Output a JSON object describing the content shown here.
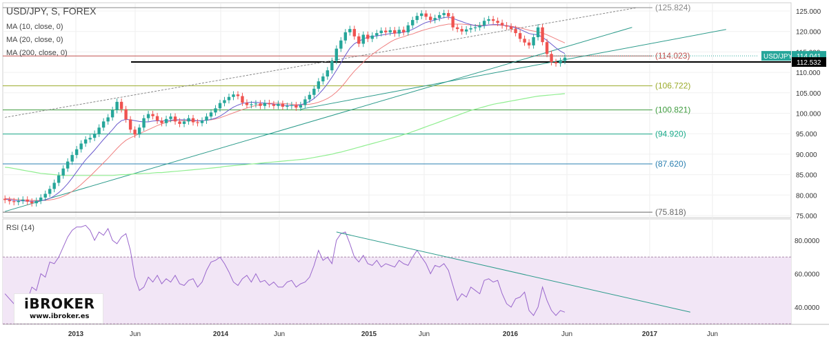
{
  "chart_data": [
    {
      "type": "candlestick",
      "title": "USD/JPY, S, FOREX",
      "overlays": [
        "MA (10, close, 0)",
        "MA (20, close, 0)",
        "MA (200, close, 0)"
      ],
      "ylim": [
        75,
        127
      ],
      "y_ticks": [
        "125.000",
        "120.000",
        "115.000",
        "110.000",
        "105.000",
        "100.000",
        "95.000",
        "90.000",
        "85.000",
        "80.000",
        "75.000"
      ],
      "x_ticks": [
        "2013",
        "Jun",
        "2014",
        "Jun",
        "2015",
        "Jun",
        "2016",
        "Jun",
        "2017",
        "Jun"
      ],
      "levels": [
        {
          "label": "(125.824)",
          "value": 125.824,
          "color": "#888888"
        },
        {
          "label": "(114.023)",
          "value": 114.023,
          "color": "#c0504d"
        },
        {
          "label": "(106.722)",
          "value": 106.722,
          "color": "#9aaa28"
        },
        {
          "label": "(100.821)",
          "value": 100.821,
          "color": "#3c9a3c"
        },
        {
          "label": "(94.920)",
          "value": 94.92,
          "color": "#1aaa8a"
        },
        {
          "label": "(87.620)",
          "value": 87.62,
          "color": "#2a7fb0"
        },
        {
          "label": "(75.818)",
          "value": 75.818,
          "color": "#666666"
        }
      ],
      "support_level": 112.532,
      "current_price": {
        "label": "USD/JPY",
        "value": "114.041"
      },
      "support_label": "112.532",
      "close_series": [
        78.8,
        78.5,
        78.3,
        78.6,
        78.9,
        78.4,
        78.0,
        78.6,
        79.4,
        80.3,
        81.5,
        83.0,
        84.8,
        86.5,
        88.2,
        89.8,
        91.2,
        92.6,
        93.6,
        94.0,
        95.0,
        96.5,
        98.0,
        99.0,
        100.8,
        102.8,
        101.0,
        98.5,
        96.0,
        94.8,
        96.5,
        98.8,
        99.8,
        99.3,
        98.2,
        97.6,
        98.6,
        99.2,
        98.0,
        97.4,
        98.0,
        98.8,
        97.8,
        97.6,
        98.2,
        99.2,
        100.2,
        101.2,
        102.5,
        103.2,
        104.0,
        104.6,
        104.2,
        102.6,
        102.0,
        102.2,
        102.4,
        101.8,
        102.5,
        102.2,
        101.8,
        102.3,
        101.6,
        101.8,
        102.0,
        101.4,
        102.0,
        103.4,
        104.5,
        106.0,
        107.8,
        109.0,
        110.5,
        112.8,
        115.8,
        117.8,
        119.8,
        120.6,
        118.8,
        117.0,
        119.2,
        118.2,
        119.0,
        119.6,
        120.2,
        119.8,
        120.3,
        119.5,
        120.4,
        119.8,
        121.5,
        122.8,
        123.8,
        124.4,
        123.6,
        122.8,
        123.3,
        124.0,
        124.5,
        123.7,
        121.0,
        120.6,
        120.0,
        120.5,
        120.8,
        121.0,
        121.5,
        122.6,
        123.0,
        122.6,
        122.1,
        121.5,
        121.2,
        120.6,
        119.6,
        118.2,
        117.3,
        116.6,
        118.6,
        121.0,
        117.4,
        114.5,
        112.5,
        112.2,
        112.8,
        113.6
      ],
      "ma10": [
        79.0,
        78.9,
        78.7,
        78.6,
        78.6,
        78.5,
        78.5,
        78.5,
        78.6,
        78.8,
        79.2,
        79.8,
        80.6,
        81.6,
        82.8,
        84.2,
        85.7,
        87.2,
        88.6,
        89.8,
        91.0,
        92.3,
        93.6,
        94.8,
        96.0,
        97.3,
        98.2,
        98.5,
        98.4,
        98.2,
        98.0,
        97.9,
        97.9,
        98.1,
        98.2,
        98.1,
        98.2,
        98.3,
        98.4,
        98.4,
        98.4,
        98.4,
        98.3,
        98.2,
        98.2,
        98.3,
        98.5,
        98.8,
        99.3,
        100.0,
        100.8,
        101.5,
        102.0,
        102.4,
        102.6,
        102.7,
        102.7,
        102.6,
        102.5,
        102.4,
        102.2,
        102.1,
        102.0,
        101.9,
        101.9,
        101.9,
        102.1,
        102.4,
        102.9,
        103.6,
        104.6,
        105.8,
        107.2,
        108.8,
        110.5,
        112.3,
        114.2,
        115.9,
        117.0,
        117.6,
        118.2,
        118.6,
        118.8,
        118.9,
        119.1,
        119.3,
        119.5,
        119.6,
        119.7,
        119.8,
        120.1,
        120.5,
        121.1,
        121.7,
        122.2,
        122.5,
        122.8,
        123.1,
        123.4,
        123.5,
        123.2,
        122.8,
        122.4,
        122.0,
        121.7,
        121.4,
        121.3,
        121.4,
        121.6,
        121.7,
        121.7,
        121.6,
        121.4,
        121.2,
        120.9,
        120.5,
        120.0,
        119.5,
        119.3,
        119.2,
        118.6,
        117.8,
        116.9,
        116.0,
        115.2,
        114.6
      ],
      "ma20": [
        79.2,
        79.1,
        79.0,
        78.9,
        78.8,
        78.8,
        78.7,
        78.7,
        78.7,
        78.7,
        78.8,
        79.0,
        79.3,
        79.7,
        80.2,
        80.9,
        81.7,
        82.6,
        83.6,
        84.6,
        85.7,
        86.8,
        87.9,
        89.0,
        90.2,
        91.4,
        92.5,
        93.4,
        94.0,
        94.5,
        95.0,
        95.5,
        96.0,
        96.5,
        97.0,
        97.4,
        97.8,
        98.1,
        98.3,
        98.3,
        98.2,
        98.2,
        98.1,
        98.1,
        98.2,
        98.3,
        98.4,
        98.6,
        98.9,
        99.3,
        99.7,
        100.1,
        100.5,
        100.9,
        101.3,
        101.6,
        101.9,
        102.1,
        102.3,
        102.4,
        102.5,
        102.5,
        102.4,
        102.3,
        102.2,
        102.1,
        102.1,
        102.1,
        102.2,
        102.4,
        102.7,
        103.1,
        103.6,
        104.3,
        105.2,
        106.3,
        107.6,
        109.0,
        110.3,
        111.4,
        112.5,
        113.5,
        114.4,
        115.2,
        116.0,
        116.7,
        117.4,
        118.0,
        118.4,
        118.7,
        119.1,
        119.4,
        119.8,
        120.2,
        120.5,
        120.8,
        121.1,
        121.4,
        121.6,
        121.8,
        121.8,
        121.8,
        121.8,
        121.7,
        121.6,
        121.5,
        121.5,
        121.5,
        121.6,
        121.6,
        121.6,
        121.5,
        121.4,
        121.3,
        121.1,
        120.9,
        120.6,
        120.3,
        120.1,
        119.9,
        119.6,
        119.2,
        118.7,
        118.2,
        117.7,
        117.2
      ],
      "ma200": [
        86.8,
        86.7,
        86.5,
        86.3,
        86.1,
        85.9,
        85.7,
        85.5,
        85.3,
        85.2,
        85.1,
        85.0,
        84.9,
        84.8,
        84.8,
        84.8,
        84.8,
        84.8,
        84.8,
        84.8,
        84.8,
        84.8,
        84.8,
        84.8,
        84.8,
        84.9,
        85.0,
        85.0,
        85.1,
        85.2,
        85.2,
        85.3,
        85.3,
        85.4,
        85.5,
        85.5,
        85.6,
        85.7,
        85.8,
        85.9,
        86.0,
        86.1,
        86.2,
        86.3,
        86.4,
        86.5,
        86.6,
        86.7,
        86.8,
        87.0,
        87.1,
        87.2,
        87.3,
        87.4,
        87.5,
        87.6,
        87.7,
        87.8,
        87.9,
        88.0,
        88.1,
        88.2,
        88.3,
        88.4,
        88.5,
        88.6,
        88.7,
        88.8,
        89.0,
        89.2,
        89.4,
        89.6,
        89.8,
        90.0,
        90.3,
        90.5,
        90.8,
        91.1,
        91.4,
        91.7,
        92.0,
        92.3,
        92.6,
        92.9,
        93.2,
        93.5,
        93.8,
        94.1,
        94.4,
        94.8,
        95.1,
        95.5,
        95.9,
        96.3,
        96.7,
        97.1,
        97.5,
        97.9,
        98.3,
        98.7,
        99.1,
        99.5,
        99.9,
        100.3,
        100.7,
        101.0,
        101.3,
        101.6,
        101.9,
        102.2,
        102.4,
        102.6,
        102.8,
        103.0,
        103.2,
        103.4,
        103.6,
        103.8,
        104.0,
        104.2,
        104.3,
        104.4,
        104.5,
        104.6,
        104.7,
        104.8
      ],
      "trendlines": [
        {
          "from": [
            0,
            76.0
          ],
          "to": [
            140,
            121.0
          ]
        },
        {
          "from": [
            66,
            101.0
          ],
          "to": [
            161,
            120.5
          ]
        },
        {
          "from": [
            0,
            99.0
          ],
          "to": [
            141,
            125.8
          ]
        }
      ]
    },
    {
      "type": "line",
      "title": "RSI (14)",
      "ylim": [
        28,
        92
      ],
      "y_ticks": [
        "80.0000",
        "60.0000",
        "40.0000"
      ],
      "band": [
        30,
        70
      ],
      "values": [
        48,
        45,
        42,
        40,
        47,
        44,
        52,
        50,
        60,
        58,
        67,
        66,
        70,
        76,
        82,
        86,
        88,
        88,
        89,
        86,
        80,
        85,
        83,
        87,
        80,
        78,
        82,
        84,
        74,
        58,
        50,
        52,
        58,
        55,
        59,
        54,
        57,
        55,
        59,
        54,
        53,
        56,
        57,
        52,
        55,
        62,
        67,
        68,
        70,
        66,
        61,
        55,
        53,
        57,
        59,
        55,
        60,
        55,
        56,
        53,
        55,
        52,
        52,
        55,
        56,
        52,
        54,
        55,
        58,
        65,
        74,
        68,
        70,
        66,
        80,
        84,
        85,
        78,
        70,
        67,
        71,
        66,
        65,
        68,
        64,
        66,
        65,
        64,
        68,
        66,
        65,
        70,
        74,
        70,
        66,
        60,
        65,
        64,
        66,
        62,
        53,
        44,
        48,
        46,
        52,
        50,
        48,
        56,
        57,
        55,
        56,
        48,
        42,
        40,
        45,
        46,
        49,
        38,
        35,
        40,
        52,
        44,
        38,
        35,
        38,
        37
      ],
      "trendlines": [
        {
          "from": [
            74,
            85.0
          ],
          "to": [
            153,
            37.0
          ]
        }
      ]
    }
  ],
  "branding": {
    "title": "iBROKER",
    "url": "www.ibroker.es"
  },
  "colors": {
    "up": "#26a69a",
    "down": "#ef5350",
    "ma10": "#6a5acd",
    "ma20": "#f08080",
    "ma200": "#90ee90",
    "rsi": "#9966cc",
    "rsi_band": "#f2e6f6"
  }
}
